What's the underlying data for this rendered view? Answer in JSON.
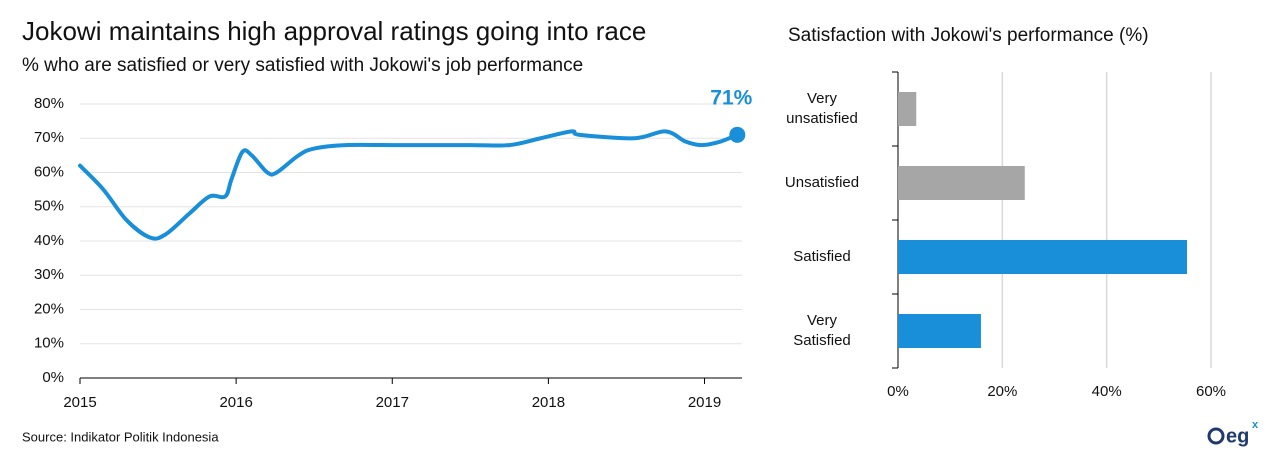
{
  "chart_data": [
    {
      "type": "line",
      "title": "Jokowi maintains high approval ratings going into race",
      "subtitle": "% who are satisfied or very satisfied with Jokowi's job performance",
      "x": [
        2015.0,
        2015.15,
        2015.3,
        2015.45,
        2015.55,
        2015.7,
        2015.83,
        2015.93,
        2015.97,
        2016.04,
        2016.1,
        2016.2,
        2016.26,
        2016.4,
        2016.5,
        2016.7,
        2017.0,
        2017.5,
        2017.75,
        2017.95,
        2018.15,
        2018.2,
        2018.55,
        2018.75,
        2018.88,
        2018.98,
        2019.1,
        2019.21
      ],
      "series": [
        {
          "color": "#1a8fd9",
          "values": [
            62,
            55,
            46,
            41,
            42,
            48,
            53,
            53,
            58,
            66,
            65,
            60,
            60,
            65,
            67,
            68,
            68,
            68,
            68,
            70,
            72,
            71,
            70,
            72,
            69,
            68,
            69,
            71
          ],
          "value_labels": [
            null,
            null,
            null,
            null,
            null,
            null,
            null,
            null,
            null,
            null,
            null,
            null,
            null,
            null,
            null,
            null,
            null,
            null,
            null,
            null,
            null,
            null,
            null,
            null,
            null,
            null,
            null,
            "71%"
          ]
        }
      ],
      "xlim": [
        2015,
        2019.24
      ],
      "xticks": [
        2015,
        2016,
        2017,
        2018,
        2019
      ],
      "ylim": [
        0,
        80
      ],
      "yticks": [
        {
          "value": 0,
          "label": "0%"
        },
        {
          "value": 10,
          "label": "10%"
        },
        {
          "value": 20,
          "label": "20%"
        },
        {
          "value": 30,
          "label": "30%"
        },
        {
          "value": 40,
          "label": "40%"
        },
        {
          "value": 50,
          "label": "50%"
        },
        {
          "value": 60,
          "label": "60%"
        },
        {
          "value": 70,
          "label": "70%"
        },
        {
          "value": 80,
          "label": "80%"
        }
      ],
      "grid": true
    },
    {
      "type": "hbar",
      "title": "Satisfaction with Jokowi's performance (%)",
      "categories": [
        "Very\nunsatisfied",
        "Unsatisfied",
        "Satisfied",
        "Very\nSatisfied"
      ],
      "values": [
        3.5,
        24.3,
        55.4,
        15.9
      ],
      "colors": [
        "#a6a6a6",
        "#a6a6a6",
        "#1a8fd9",
        "#1a8fd9"
      ],
      "xlim": [
        0,
        60
      ],
      "xticks": [
        {
          "value": 0,
          "label": "0%"
        },
        {
          "value": 20,
          "label": "20%"
        },
        {
          "value": 40,
          "label": "40%"
        },
        {
          "value": 60,
          "label": "60%"
        }
      ],
      "grid": true
    }
  ],
  "source": "Source: Indikator  Politik Indonesia",
  "logo": "eg"
}
